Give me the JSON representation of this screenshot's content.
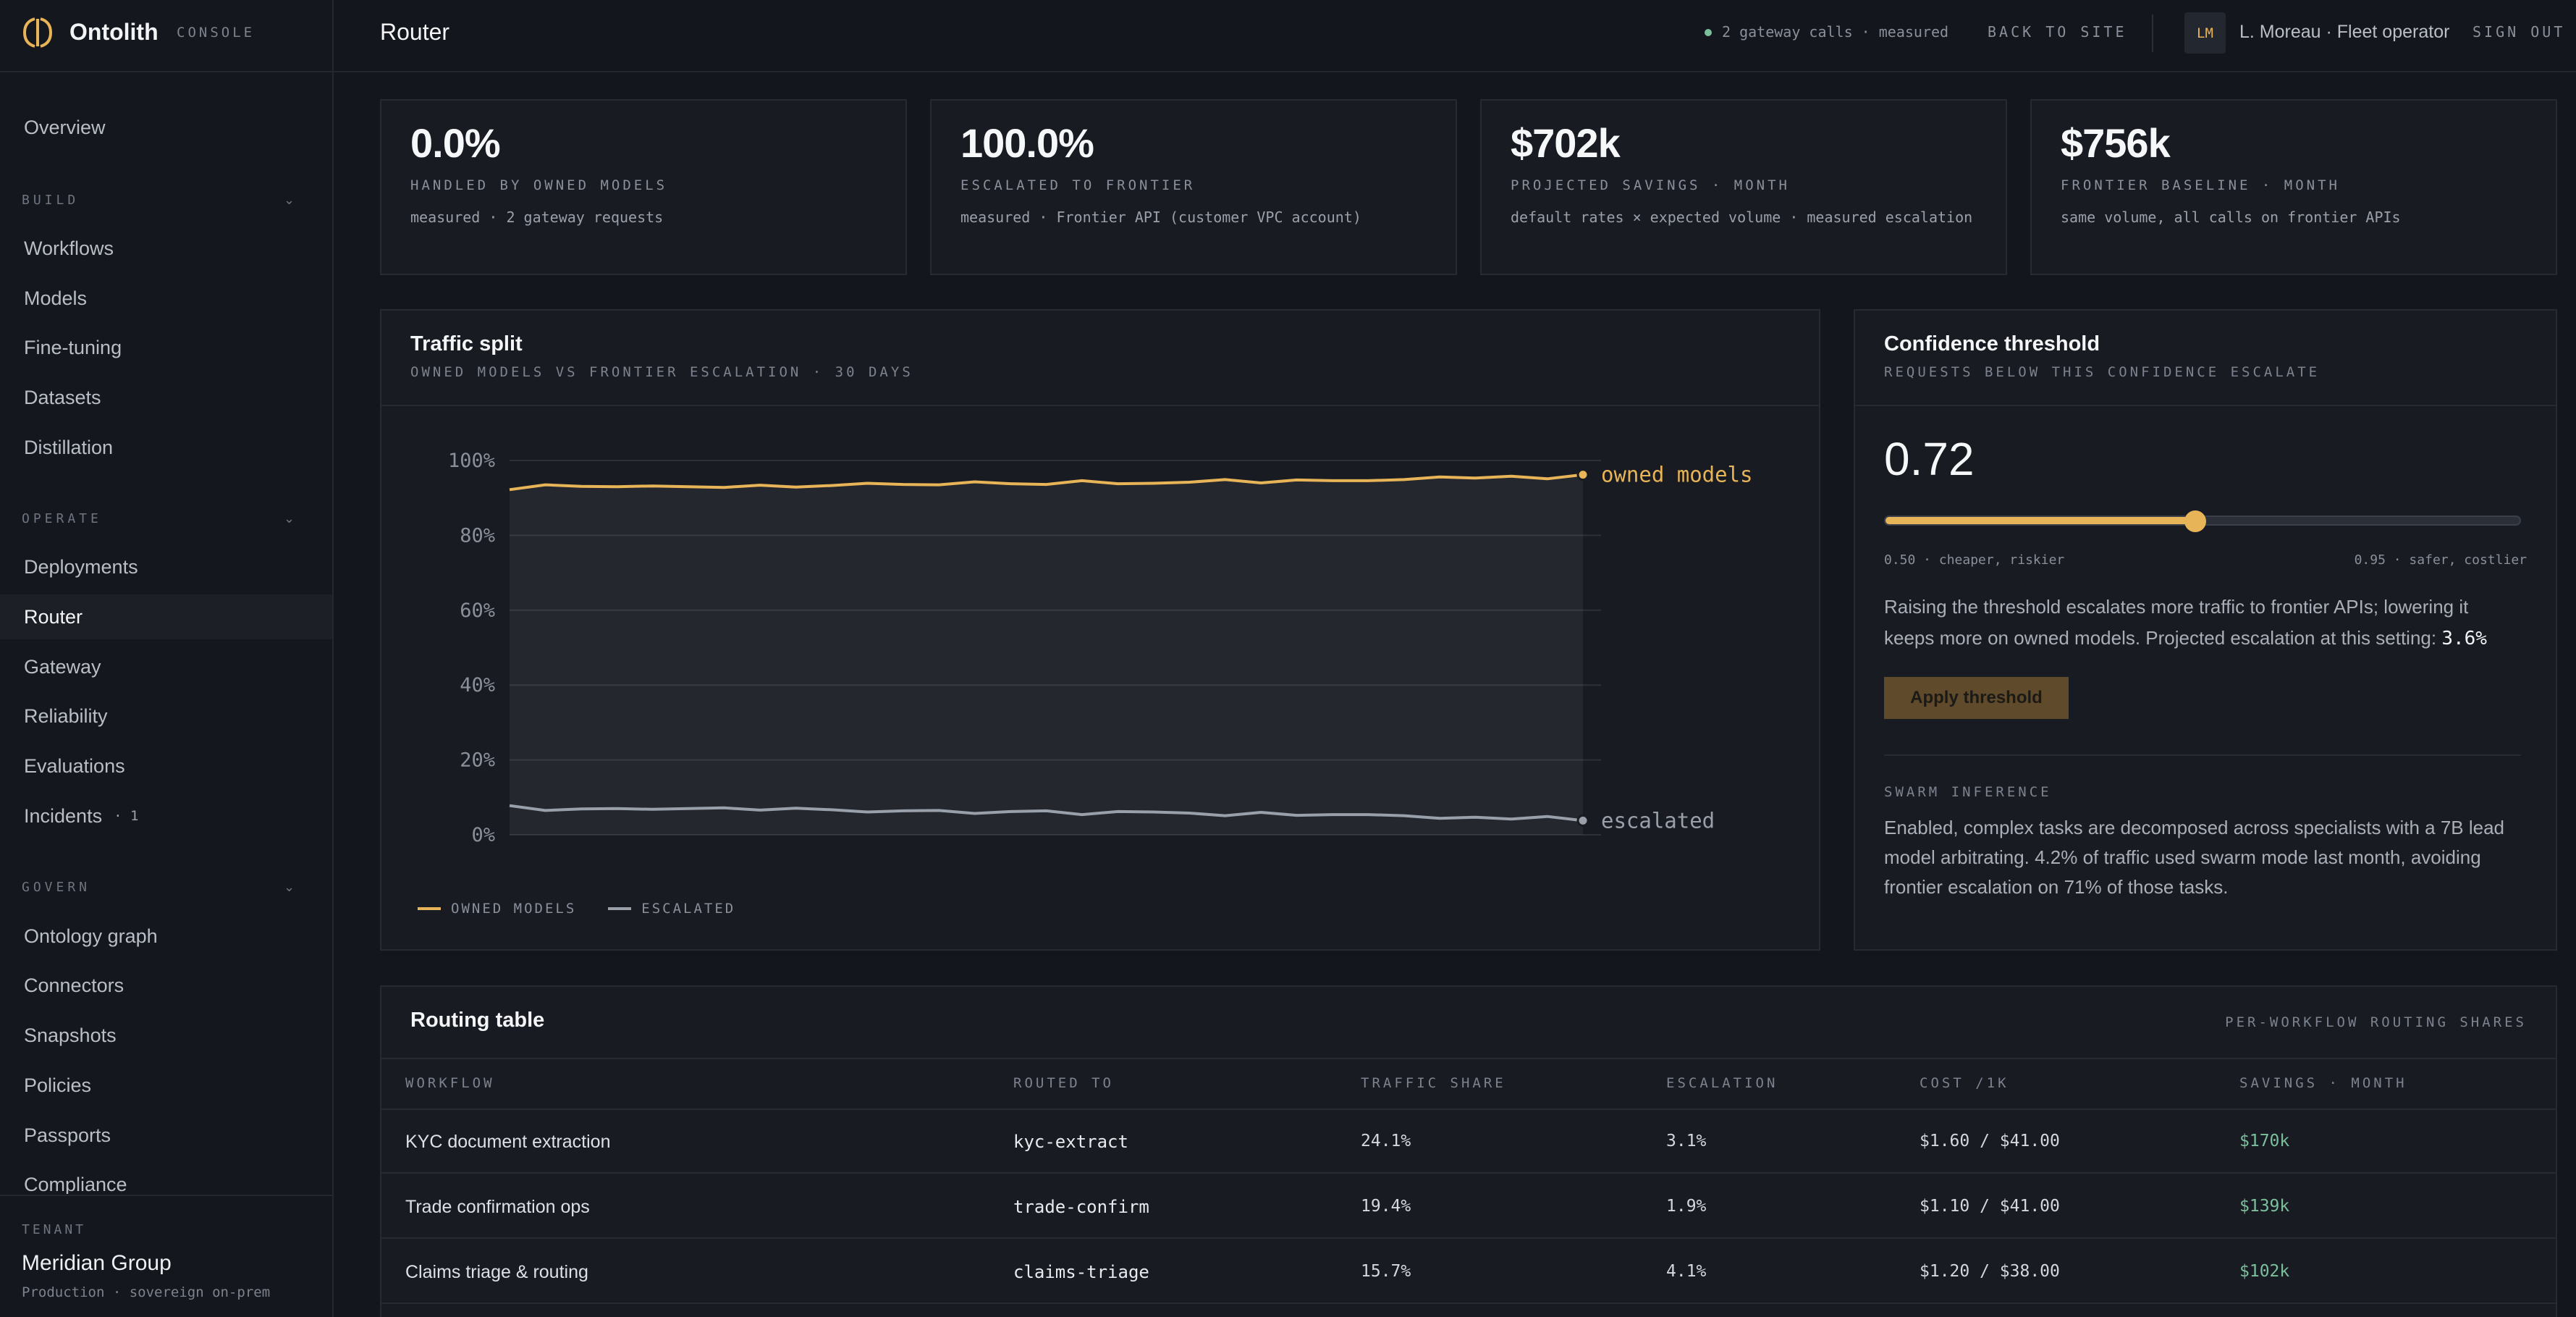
{
  "brand": {
    "name": "Ontolith",
    "subtitle": "CONSOLE",
    "accent": "#e8b458"
  },
  "sidebar": {
    "overview": "Overview",
    "groups": [
      {
        "label": "BUILD",
        "items": [
          {
            "label": "Workflows"
          },
          {
            "label": "Models"
          },
          {
            "label": "Fine-tuning"
          },
          {
            "label": "Datasets"
          },
          {
            "label": "Distillation"
          }
        ]
      },
      {
        "label": "OPERATE",
        "items": [
          {
            "label": "Deployments"
          },
          {
            "label": "Router",
            "active": true
          },
          {
            "label": "Gateway"
          },
          {
            "label": "Reliability"
          },
          {
            "label": "Evaluations"
          },
          {
            "label": "Incidents",
            "badge": "· 1"
          }
        ]
      },
      {
        "label": "GOVERN",
        "items": [
          {
            "label": "Ontology graph"
          },
          {
            "label": "Connectors"
          },
          {
            "label": "Snapshots"
          },
          {
            "label": "Policies"
          },
          {
            "label": "Passports"
          },
          {
            "label": "Compliance"
          }
        ]
      }
    ],
    "tenant": {
      "label": "TENANT",
      "name": "Meridian Group",
      "env": "Production · sovereign on-prem"
    }
  },
  "header": {
    "title": "Router",
    "status": "2 gateway calls · measured",
    "status_color": "#7bbf9c",
    "back": "BACK TO SITE",
    "avatar": "LM",
    "user": "L. Moreau · Fleet operator",
    "signout": "SIGN OUT"
  },
  "stats": [
    {
      "value": "0.0%",
      "label": "HANDLED BY OWNED MODELS",
      "note": "measured · 2 gateway requests"
    },
    {
      "value": "100.0%",
      "label": "ESCALATED TO FRONTIER",
      "note": "measured · Frontier API (customer VPC account)"
    },
    {
      "value": "$702k",
      "label": "PROJECTED SAVINGS · MONTH",
      "note": "default rates × expected volume · measured escalation"
    },
    {
      "value": "$756k",
      "label": "FRONTIER BASELINE · MONTH",
      "note": "same volume, all calls on frontier APIs"
    }
  ],
  "traffic": {
    "title": "Traffic split",
    "subtitle": "OWNED MODELS VS FRONTIER ESCALATION · 30 DAYS",
    "chart_data": {
      "type": "line",
      "ylim": [
        0,
        100
      ],
      "yticks": [
        "100%",
        "80%",
        "60%",
        "40%",
        "20%",
        "0%"
      ],
      "series": [
        {
          "name": "owned models",
          "legend": "OWNED MODELS",
          "color": "#e8b458",
          "values": [
            92.2,
            93.5,
            93.1,
            93.0,
            93.2,
            93.0,
            92.8,
            93.4,
            92.9,
            93.3,
            93.9,
            93.6,
            93.5,
            94.3,
            93.8,
            93.6,
            94.6,
            93.8,
            93.9,
            94.2,
            94.9,
            94.0,
            94.8,
            94.6,
            94.6,
            94.9,
            95.6,
            95.3,
            95.8,
            95.1,
            96.2
          ]
        },
        {
          "name": "escalated",
          "legend": "ESCALATED",
          "color": "#9aa0aa",
          "values": [
            7.8,
            6.5,
            6.9,
            7.0,
            6.8,
            7.0,
            7.2,
            6.6,
            7.1,
            6.7,
            6.1,
            6.4,
            6.5,
            5.7,
            6.2,
            6.4,
            5.4,
            6.2,
            6.1,
            5.8,
            5.1,
            6.0,
            5.2,
            5.4,
            5.4,
            5.1,
            4.4,
            4.7,
            4.2,
            4.9,
            3.8
          ]
        }
      ]
    }
  },
  "threshold": {
    "title": "Confidence threshold",
    "subtitle": "REQUESTS BELOW THIS CONFIDENCE ESCALATE",
    "value": "0.72",
    "slider": {
      "min": 0.5,
      "max": 0.95,
      "current": 0.72
    },
    "min_label": "0.50 · cheaper, riskier",
    "max_label": "0.95 · safer, costlier",
    "desc": "Raising the threshold escalates more traffic to frontier APIs; lowering it keeps more on owned models. Projected escalation at this setting:",
    "projected": "3.6%",
    "apply": "Apply threshold",
    "swarm_label": "SWARM INFERENCE",
    "swarm_text": "Enabled, complex tasks are decomposed across specialists with a 7B lead model arbitrating. 4.2% of traffic used swarm mode last month, avoiding frontier escalation on 71% of those tasks."
  },
  "routing": {
    "title": "Routing table",
    "note": "PER-WORKFLOW ROUTING SHARES",
    "columns": [
      "WORKFLOW",
      "ROUTED TO",
      "TRAFFIC SHARE",
      "ESCALATION",
      "COST /1K",
      "SAVINGS · MONTH"
    ],
    "rows": [
      {
        "workflow": "KYC document extraction",
        "model": "kyc-extract",
        "share": "24.1%",
        "escalation": "3.1%",
        "cost": "$1.60 / $41.00",
        "savings": "$170k"
      },
      {
        "workflow": "Trade confirmation ops",
        "model": "trade-confirm",
        "share": "19.4%",
        "escalation": "1.9%",
        "cost": "$1.10 / $41.00",
        "savings": "$139k"
      },
      {
        "workflow": "Claims triage & routing",
        "model": "claims-triage",
        "share": "15.7%",
        "escalation": "4.1%",
        "cost": "$1.20 / $38.00",
        "savings": "$102k"
      }
    ]
  }
}
